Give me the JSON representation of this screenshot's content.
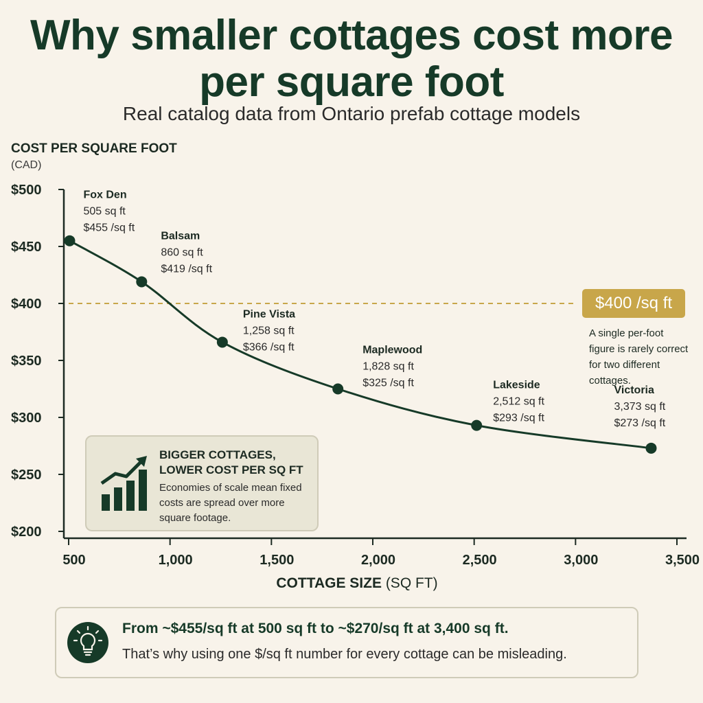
{
  "title": "Why smaller cottages cost more per square foot",
  "subtitle": "Real catalog data from Ontario prefab cottage models",
  "chart_data": {
    "type": "line",
    "ylabel": "COST PER SQUARE FOOT",
    "ylabel_unit": "(CAD)",
    "xlabel_bold": "COTTAGE SIZE",
    "xlabel_unit": "(SQ FT)",
    "xlim": [
      500,
      3500
    ],
    "ylim": [
      200,
      500
    ],
    "x_ticks": [
      {
        "value": 500,
        "label": "500"
      },
      {
        "value": 1000,
        "label": "1,000"
      },
      {
        "value": 1500,
        "label": "1,500"
      },
      {
        "value": 2000,
        "label": "2,000"
      },
      {
        "value": 2500,
        "label": "2,500"
      },
      {
        "value": 3000,
        "label": "3,000"
      },
      {
        "value": 3500,
        "label": "3,500"
      }
    ],
    "y_ticks": [
      {
        "value": 500,
        "label": "$500"
      },
      {
        "value": 450,
        "label": "$450"
      },
      {
        "value": 400,
        "label": "$400"
      },
      {
        "value": 350,
        "label": "$350"
      },
      {
        "value": 300,
        "label": "$300"
      },
      {
        "value": 250,
        "label": "$250"
      },
      {
        "value": 200,
        "label": "$200"
      }
    ],
    "points": [
      {
        "name": "Fox Den",
        "size_label": "505 sq ft",
        "price_label": "$455 /sq ft",
        "x": 505,
        "y": 455
      },
      {
        "name": "Balsam",
        "size_label": "860 sq ft",
        "price_label": "$419 /sq ft",
        "x": 860,
        "y": 419
      },
      {
        "name": "Pine Vista",
        "size_label": "1,258 sq ft",
        "price_label": "$366 /sq ft",
        "x": 1258,
        "y": 366
      },
      {
        "name": "Maplewood",
        "size_label": "1,828 sq ft",
        "price_label": "$325 /sq ft",
        "x": 1828,
        "y": 325
      },
      {
        "name": "Lakeside",
        "size_label": "2,512 sq ft",
        "price_label": "$293 /sq ft",
        "x": 2512,
        "y": 293
      },
      {
        "name": "Victoria",
        "size_label": "3,373 sq ft",
        "price_label": "$273 /sq ft",
        "x": 3373,
        "y": 273
      }
    ],
    "reference_line": {
      "value": 400,
      "label": "$400 /sq ft",
      "note": "A single per-foot figure is rarely correct for two different cottages.",
      "color": "#c8a64a"
    },
    "grid": false,
    "legend": "none"
  },
  "callout": {
    "title": "BIGGER COTTAGES, LOWER COST PER SQ FT",
    "text": "Economies of scale mean fixed costs are spread over more square footage.",
    "icon": "bar-chart-up-icon"
  },
  "summary": {
    "icon": "lightbulb-icon",
    "headline": "From ~$455/sq ft at 500 sq ft to ~$270/sq ft at 3,400 sq ft.",
    "text": "That’s why using one $/sq ft number for every cottage can be misleading."
  },
  "colors": {
    "background": "#f8f3ea",
    "primary": "#163a28",
    "accent": "#c8a64a",
    "callout_bg": "#e9e6d6"
  }
}
